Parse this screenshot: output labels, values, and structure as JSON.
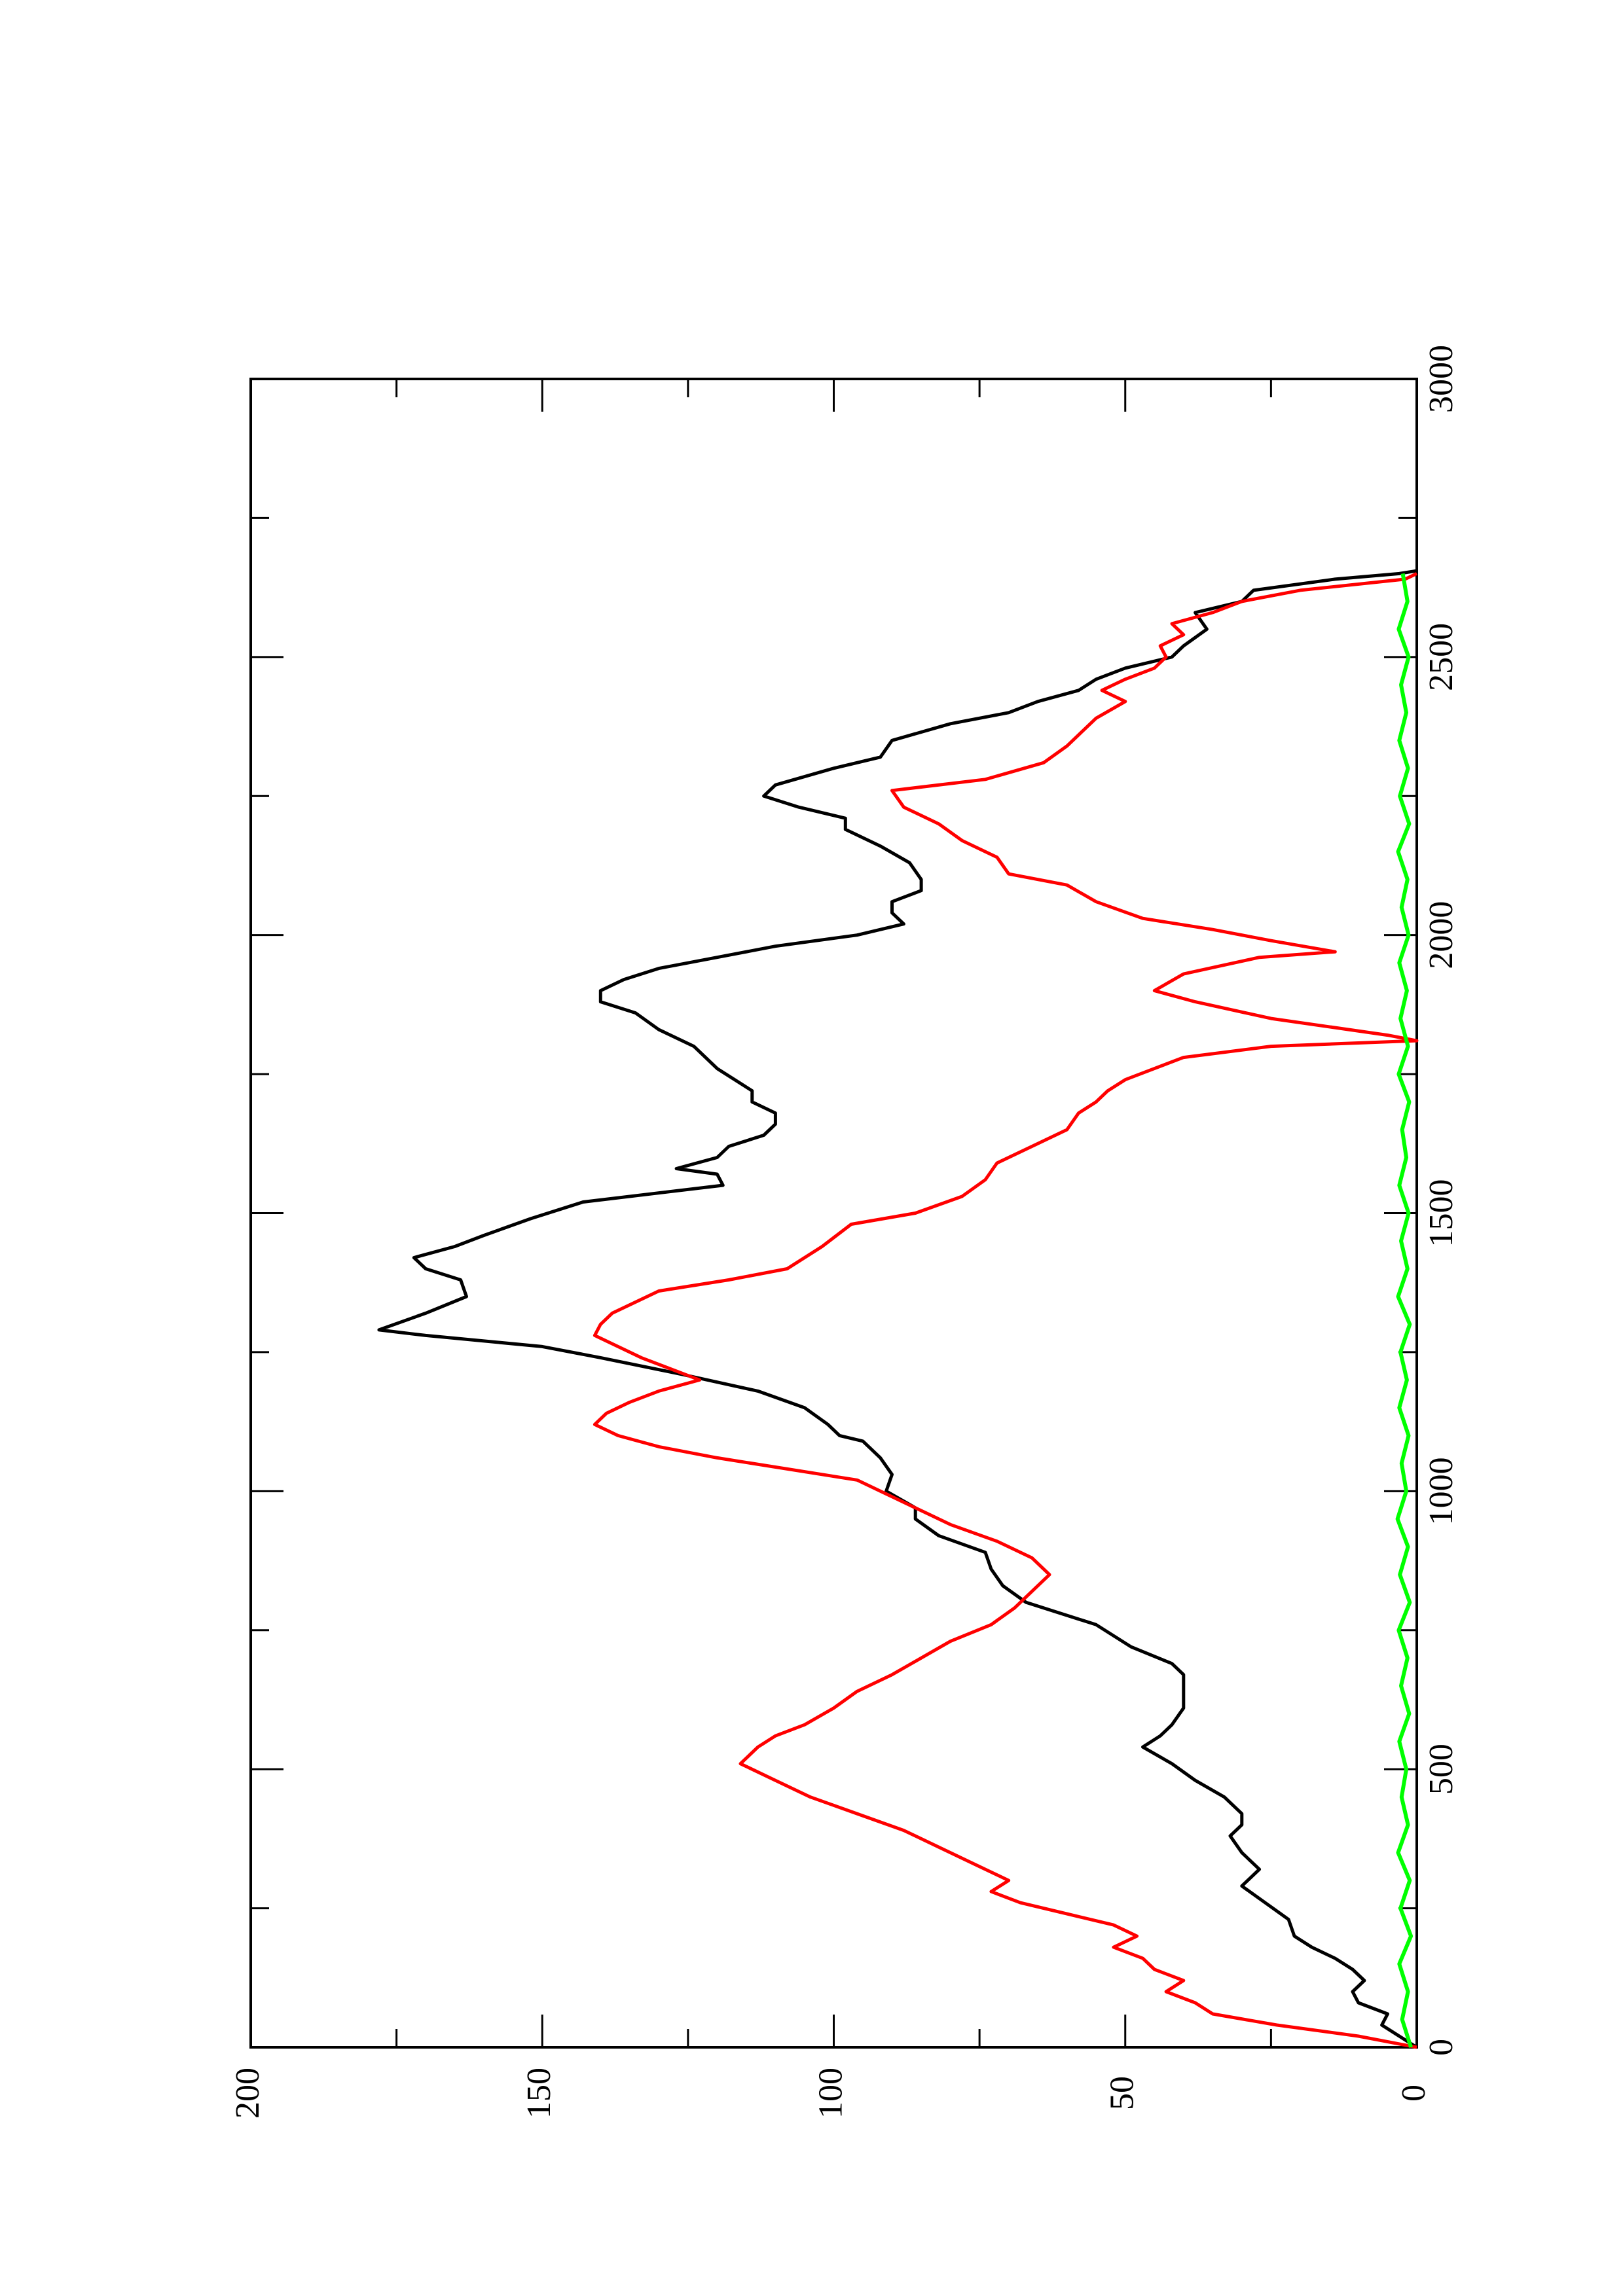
{
  "chart_data": {
    "type": "line",
    "title": "",
    "xlabel": "",
    "ylabel": "",
    "xlim": [
      0,
      3000
    ],
    "ylim": [
      0,
      200
    ],
    "x_ticks": [
      "0",
      "500",
      "1000",
      "1500",
      "2000",
      "2500",
      "3000"
    ],
    "y_ticks": [
      "0",
      "50",
      "100",
      "150",
      "200"
    ],
    "x_minor_step": 250,
    "grid": false,
    "legend": "none",
    "orientation": "rotated 90 degrees counter-clockwise",
    "series": [
      {
        "color": "#000000",
        "points": [
          [
            0,
            0
          ],
          [
            20,
            3
          ],
          [
            40,
            6
          ],
          [
            60,
            5
          ],
          [
            80,
            10
          ],
          [
            100,
            11
          ],
          [
            120,
            9
          ],
          [
            140,
            11
          ],
          [
            160,
            14
          ],
          [
            180,
            18
          ],
          [
            200,
            21
          ],
          [
            230,
            22
          ],
          [
            260,
            26
          ],
          [
            290,
            30
          ],
          [
            320,
            27
          ],
          [
            350,
            30
          ],
          [
            380,
            32
          ],
          [
            400,
            30
          ],
          [
            420,
            30
          ],
          [
            450,
            33
          ],
          [
            480,
            38
          ],
          [
            510,
            42
          ],
          [
            540,
            47
          ],
          [
            560,
            44
          ],
          [
            580,
            42
          ],
          [
            610,
            40
          ],
          [
            640,
            40
          ],
          [
            670,
            40
          ],
          [
            690,
            42
          ],
          [
            720,
            49
          ],
          [
            760,
            55
          ],
          [
            800,
            67
          ],
          [
            830,
            71
          ],
          [
            860,
            73
          ],
          [
            890,
            74
          ],
          [
            920,
            82
          ],
          [
            950,
            86
          ],
          [
            970,
            86
          ],
          [
            1000,
            91
          ],
          [
            1030,
            90
          ],
          [
            1060,
            92
          ],
          [
            1090,
            95
          ],
          [
            1100,
            99
          ],
          [
            1120,
            101
          ],
          [
            1150,
            105
          ],
          [
            1180,
            113
          ],
          [
            1210,
            126
          ],
          [
            1240,
            140
          ],
          [
            1260,
            150
          ],
          [
            1280,
            170
          ],
          [
            1290,
            178
          ],
          [
            1320,
            170
          ],
          [
            1350,
            163
          ],
          [
            1380,
            164
          ],
          [
            1400,
            170
          ],
          [
            1420,
            172
          ],
          [
            1440,
            165
          ],
          [
            1460,
            160
          ],
          [
            1490,
            152
          ],
          [
            1520,
            143
          ],
          [
            1550,
            119
          ],
          [
            1570,
            120
          ],
          [
            1580,
            127
          ],
          [
            1600,
            120
          ],
          [
            1620,
            118
          ],
          [
            1640,
            112
          ],
          [
            1660,
            110
          ],
          [
            1680,
            110
          ],
          [
            1700,
            114
          ],
          [
            1720,
            114
          ],
          [
            1760,
            120
          ],
          [
            1800,
            124
          ],
          [
            1830,
            130
          ],
          [
            1860,
            134
          ],
          [
            1880,
            140
          ],
          [
            1900,
            140
          ],
          [
            1920,
            136
          ],
          [
            1940,
            130
          ],
          [
            1960,
            120
          ],
          [
            1980,
            110
          ],
          [
            2000,
            96
          ],
          [
            2020,
            88
          ],
          [
            2040,
            90
          ],
          [
            2060,
            90
          ],
          [
            2080,
            85
          ],
          [
            2100,
            85
          ],
          [
            2130,
            87
          ],
          [
            2160,
            92
          ],
          [
            2190,
            98
          ],
          [
            2210,
            98
          ],
          [
            2230,
            106
          ],
          [
            2250,
            112
          ],
          [
            2270,
            110
          ],
          [
            2300,
            100
          ],
          [
            2320,
            92
          ],
          [
            2350,
            90
          ],
          [
            2380,
            80
          ],
          [
            2400,
            70
          ],
          [
            2420,
            65
          ],
          [
            2440,
            58
          ],
          [
            2460,
            55
          ],
          [
            2480,
            50
          ],
          [
            2500,
            42
          ],
          [
            2520,
            40
          ],
          [
            2550,
            36
          ],
          [
            2580,
            38
          ],
          [
            2600,
            30
          ],
          [
            2620,
            28
          ],
          [
            2640,
            14
          ],
          [
            2650,
            3
          ],
          [
            2655,
            0
          ]
        ]
      },
      {
        "color": "#ff0000",
        "points": [
          [
            0,
            0
          ],
          [
            20,
            10
          ],
          [
            40,
            24
          ],
          [
            60,
            35
          ],
          [
            80,
            38
          ],
          [
            100,
            43
          ],
          [
            120,
            40
          ],
          [
            140,
            45
          ],
          [
            160,
            47
          ],
          [
            180,
            52
          ],
          [
            200,
            48
          ],
          [
            220,
            52
          ],
          [
            240,
            60
          ],
          [
            260,
            68
          ],
          [
            280,
            73
          ],
          [
            300,
            70
          ],
          [
            330,
            76
          ],
          [
            360,
            82
          ],
          [
            390,
            88
          ],
          [
            420,
            96
          ],
          [
            450,
            104
          ],
          [
            480,
            110
          ],
          [
            510,
            116
          ],
          [
            540,
            113
          ],
          [
            560,
            110
          ],
          [
            580,
            105
          ],
          [
            610,
            100
          ],
          [
            640,
            96
          ],
          [
            670,
            90
          ],
          [
            700,
            85
          ],
          [
            730,
            80
          ],
          [
            760,
            73
          ],
          [
            790,
            69
          ],
          [
            820,
            66
          ],
          [
            850,
            63
          ],
          [
            880,
            66
          ],
          [
            910,
            72
          ],
          [
            940,
            80
          ],
          [
            960,
            84
          ],
          [
            990,
            90
          ],
          [
            1020,
            96
          ],
          [
            1060,
            120
          ],
          [
            1080,
            130
          ],
          [
            1100,
            137
          ],
          [
            1120,
            141
          ],
          [
            1140,
            139
          ],
          [
            1160,
            135
          ],
          [
            1180,
            130
          ],
          [
            1200,
            123
          ],
          [
            1220,
            128
          ],
          [
            1240,
            133
          ],
          [
            1260,
            137
          ],
          [
            1280,
            141
          ],
          [
            1300,
            140
          ],
          [
            1320,
            138
          ],
          [
            1360,
            130
          ],
          [
            1380,
            118
          ],
          [
            1400,
            108
          ],
          [
            1420,
            105
          ],
          [
            1440,
            102
          ],
          [
            1480,
            97
          ],
          [
            1500,
            86
          ],
          [
            1530,
            78
          ],
          [
            1560,
            74
          ],
          [
            1590,
            72
          ],
          [
            1620,
            66
          ],
          [
            1650,
            60
          ],
          [
            1680,
            58
          ],
          [
            1700,
            55
          ],
          [
            1720,
            53
          ],
          [
            1740,
            50
          ],
          [
            1760,
            45
          ],
          [
            1780,
            40
          ],
          [
            1800,
            25
          ],
          [
            1810,
            0
          ],
          [
            1820,
            5
          ],
          [
            1850,
            25
          ],
          [
            1880,
            38
          ],
          [
            1900,
            45
          ],
          [
            1930,
            40
          ],
          [
            1960,
            27
          ],
          [
            1970,
            14
          ],
          [
            1990,
            25
          ],
          [
            2010,
            35
          ],
          [
            2030,
            47
          ],
          [
            2060,
            55
          ],
          [
            2090,
            60
          ],
          [
            2110,
            70
          ],
          [
            2140,
            72
          ],
          [
            2170,
            78
          ],
          [
            2200,
            82
          ],
          [
            2230,
            88
          ],
          [
            2260,
            90
          ],
          [
            2280,
            74
          ],
          [
            2310,
            64
          ],
          [
            2340,
            60
          ],
          [
            2360,
            58
          ],
          [
            2390,
            55
          ],
          [
            2420,
            50
          ],
          [
            2440,
            54
          ],
          [
            2460,
            50
          ],
          [
            2480,
            45
          ],
          [
            2500,
            43
          ],
          [
            2520,
            44
          ],
          [
            2540,
            40
          ],
          [
            2560,
            42
          ],
          [
            2580,
            35
          ],
          [
            2600,
            30
          ],
          [
            2620,
            20
          ],
          [
            2640,
            2
          ],
          [
            2650,
            0
          ]
        ]
      },
      {
        "color": "#00ff00",
        "points": [
          [
            0,
            1
          ],
          [
            50,
            2.5
          ],
          [
            100,
            1.5
          ],
          [
            150,
            3
          ],
          [
            200,
            1
          ],
          [
            250,
            2.8
          ],
          [
            300,
            1.2
          ],
          [
            350,
            3.2
          ],
          [
            400,
            1.5
          ],
          [
            450,
            2.6
          ],
          [
            500,
            1.8
          ],
          [
            550,
            3
          ],
          [
            600,
            1.3
          ],
          [
            650,
            2.7
          ],
          [
            700,
            1.6
          ],
          [
            750,
            3.1
          ],
          [
            800,
            1.2
          ],
          [
            850,
            2.9
          ],
          [
            900,
            1.5
          ],
          [
            950,
            3.3
          ],
          [
            1000,
            1.8
          ],
          [
            1050,
            2.6
          ],
          [
            1100,
            1.4
          ],
          [
            1150,
            3
          ],
          [
            1200,
            1.7
          ],
          [
            1250,
            2.8
          ],
          [
            1300,
            1.2
          ],
          [
            1350,
            3.2
          ],
          [
            1400,
            1.6
          ],
          [
            1450,
            2.7
          ],
          [
            1500,
            1.4
          ],
          [
            1550,
            3
          ],
          [
            1600,
            1.8
          ],
          [
            1650,
            2.5
          ],
          [
            1700,
            1.3
          ],
          [
            1750,
            3.1
          ],
          [
            1800,
            1.5
          ],
          [
            1850,
            2.8
          ],
          [
            1900,
            1.7
          ],
          [
            1950,
            3
          ],
          [
            2000,
            1.4
          ],
          [
            2050,
            2.6
          ],
          [
            2100,
            1.6
          ],
          [
            2150,
            3.2
          ],
          [
            2200,
            1.3
          ],
          [
            2250,
            2.9
          ],
          [
            2300,
            1.5
          ],
          [
            2350,
            3
          ],
          [
            2400,
            1.8
          ],
          [
            2450,
            2.7
          ],
          [
            2500,
            1.4
          ],
          [
            2550,
            3.1
          ],
          [
            2600,
            1.6
          ],
          [
            2650,
            2.4
          ]
        ]
      }
    ]
  }
}
